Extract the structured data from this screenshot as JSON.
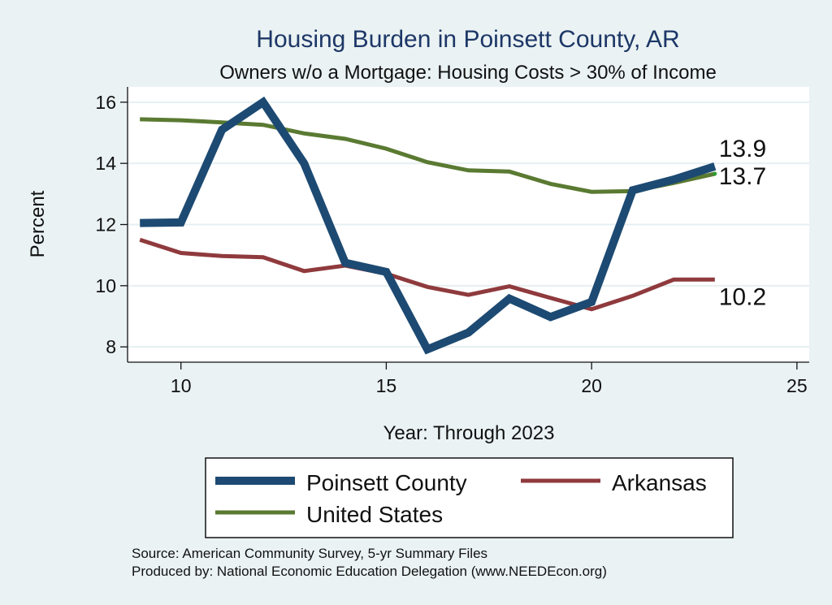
{
  "chart_data": {
    "type": "line",
    "title": "Housing Burden in Poinsett County, AR",
    "subtitle": "Owners w/o a Mortgage: Housing Costs > 30% of Income",
    "xlabel": "Year: Through 2023",
    "ylabel": "Percent",
    "xlim": [
      8.7,
      25.3
    ],
    "ylim": [
      7.5,
      16.5
    ],
    "xticks": [
      10,
      15,
      20,
      25
    ],
    "yticks": [
      8,
      10,
      12,
      14,
      16
    ],
    "grid": true,
    "legend_position": "bottom",
    "x": [
      9,
      10,
      11,
      12,
      13,
      14,
      15,
      16,
      17,
      18,
      19,
      20,
      21,
      22,
      23
    ],
    "series": [
      {
        "name": "Poinsett County",
        "color": "#1d4a72",
        "values": [
          12.05,
          12.07,
          15.1,
          16.0,
          14.0,
          10.75,
          10.45,
          7.92,
          8.47,
          9.58,
          8.98,
          9.47,
          13.12,
          13.47,
          13.9
        ],
        "end_label": "13.9"
      },
      {
        "name": "Arkansas",
        "color": "#8f3a3d",
        "values": [
          11.5,
          11.07,
          10.97,
          10.93,
          10.48,
          10.66,
          10.39,
          9.96,
          9.7,
          9.98,
          9.6,
          9.23,
          9.67,
          10.2,
          10.2
        ],
        "end_label": "10.2"
      },
      {
        "name": "United States",
        "color": "#5a7a32",
        "values": [
          15.44,
          15.41,
          15.34,
          15.26,
          14.98,
          14.8,
          14.48,
          14.04,
          13.77,
          13.73,
          13.33,
          13.07,
          13.09,
          13.36,
          13.66
        ],
        "end_label": "13.7"
      }
    ],
    "notes": [
      "Source: American Community Survey, 5-yr Summary Files",
      "Produced by: National Economic Education Delegation (www.NEEDEcon.org)"
    ]
  }
}
